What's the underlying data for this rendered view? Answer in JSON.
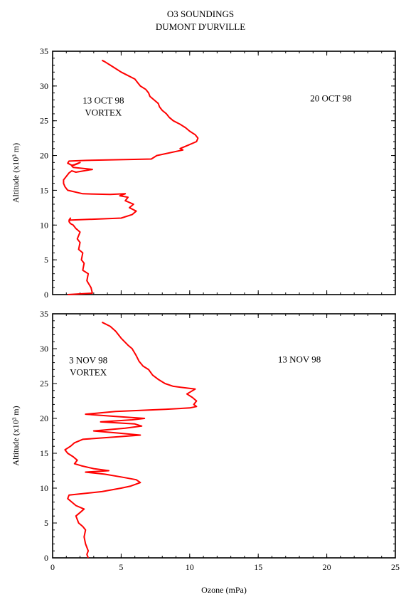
{
  "title": [
    "O3 SOUNDINGS",
    "DUMONT D'URVILLE"
  ],
  "xlabel": "Ozone (mPa)",
  "colors": {
    "profile": "#ff0000",
    "axes": "#000000"
  },
  "chart_data": [
    {
      "type": "line",
      "ylabel": "Altitude (x10³ m)",
      "xlim": [
        0,
        25
      ],
      "ylim": [
        0,
        35
      ],
      "xticks": [
        "0",
        "5",
        "10",
        "15",
        "20",
        "25"
      ],
      "yticks": [
        "0",
        "5",
        "10",
        "15",
        "20",
        "25",
        "30",
        "35"
      ],
      "annotations": [
        {
          "lines": [
            "13 OCT 98",
            "VORTEX"
          ],
          "x": 3.7,
          "y": 27.5
        },
        {
          "lines": [
            "20 OCT 98"
          ],
          "x": 20.3,
          "y": 27.8
        }
      ],
      "series": [
        {
          "x": [
            1.1,
            2.9,
            2.8,
            2.5,
            2.6,
            2.2,
            2.3,
            2.1,
            2.2,
            1.9,
            2.0,
            1.8,
            2.0,
            1.7,
            1.5,
            1.3,
            1.2,
            1.3,
            1.2,
            5.0,
            5.8,
            6.1,
            5.6,
            5.9,
            5.3,
            5.5,
            4.9,
            5.3,
            4.2,
            2.2,
            1.1,
            0.9,
            0.8,
            0.8,
            1.0,
            1.2,
            1.4,
            1.7,
            2.9,
            1.5,
            1.4,
            1.8,
            2.0,
            1.6,
            1.4,
            1.1,
            1.2,
            2.5,
            7.2,
            7.6,
            9.5,
            9.3,
            9.9,
            10.5,
            10.6,
            10.4,
            10.0,
            9.7,
            9.3,
            8.8,
            8.5,
            8.3,
            8.0,
            7.8,
            7.7,
            7.4,
            7.1,
            7.0,
            6.8,
            6.4,
            6.2,
            6.0,
            5.5,
            5.0,
            4.6,
            4.2,
            3.8,
            3.6
          ],
          "y": [
            0.0,
            0.2,
            1.0,
            2.0,
            3.0,
            3.5,
            4.5,
            5.0,
            6.0,
            6.5,
            7.5,
            8.0,
            9.0,
            9.5,
            10.0,
            10.2,
            10.5,
            11.0,
            10.7,
            11.0,
            11.5,
            12.0,
            12.5,
            13.0,
            13.5,
            14.0,
            14.2,
            14.5,
            14.4,
            14.5,
            15.0,
            15.5,
            16.0,
            16.5,
            17.0,
            17.5,
            17.8,
            17.6,
            18.0,
            18.3,
            18.5,
            18.8,
            19.0,
            18.7,
            18.6,
            18.9,
            19.2,
            19.3,
            19.5,
            20.0,
            20.8,
            21.0,
            21.5,
            22.0,
            22.5,
            23.0,
            23.5,
            24.0,
            24.5,
            25.0,
            25.5,
            26.0,
            26.5,
            27.0,
            27.5,
            28.0,
            28.5,
            29.0,
            29.5,
            30.0,
            30.5,
            31.0,
            31.5,
            32.0,
            32.5,
            33.0,
            33.5,
            33.7
          ]
        }
      ]
    },
    {
      "type": "line",
      "ylabel": "Altitude (x10³ m)",
      "xlim": [
        0,
        25
      ],
      "ylim": [
        0,
        35
      ],
      "xticks": [
        "0",
        "5",
        "10",
        "15",
        "20",
        "25"
      ],
      "yticks": [
        "0",
        "5",
        "10",
        "15",
        "20",
        "25",
        "30",
        "35"
      ],
      "annotations": [
        {
          "lines": [
            "3 NOV 98",
            "VORTEX"
          ],
          "x": 2.6,
          "y": 27.9
        },
        {
          "lines": [
            "13 NOV 98"
          ],
          "x": 18.0,
          "y": 28.0
        }
      ],
      "series": [
        {
          "x": [
            2.6,
            2.5,
            2.6,
            2.4,
            2.3,
            2.4,
            2.2,
            1.9,
            1.8,
            1.7,
            2.0,
            2.3,
            1.7,
            1.4,
            1.1,
            1.2,
            3.6,
            5.0,
            5.7,
            6.4,
            6.1,
            5.0,
            3.8,
            2.4,
            4.1,
            3.0,
            2.1,
            1.6,
            1.8,
            1.5,
            1.1,
            0.9,
            1.3,
            1.6,
            2.2,
            5.0,
            6.4,
            4.8,
            3.0,
            5.3,
            6.5,
            6.0,
            3.5,
            5.8,
            6.7,
            4.5,
            2.4,
            4.6,
            8.2,
            10.0,
            10.5,
            10.3,
            10.5,
            10.2,
            9.8,
            10.4,
            8.8,
            8.2,
            7.7,
            7.3,
            7.0,
            6.6,
            6.3,
            6.1,
            5.8,
            5.5,
            5.0,
            4.6,
            4.2,
            3.6
          ],
          "y": [
            0.0,
            0.5,
            1.0,
            2.0,
            3.0,
            4.0,
            4.5,
            5.0,
            5.5,
            6.0,
            6.5,
            7.0,
            7.5,
            8.0,
            8.5,
            9.0,
            9.5,
            10.0,
            10.3,
            10.8,
            11.2,
            11.6,
            12.0,
            12.3,
            12.5,
            12.8,
            13.2,
            13.5,
            14.0,
            14.5,
            15.0,
            15.5,
            16.0,
            16.5,
            17.0,
            17.4,
            17.6,
            17.9,
            18.2,
            18.6,
            18.9,
            19.2,
            19.5,
            19.8,
            20.0,
            20.3,
            20.6,
            21.0,
            21.3,
            21.5,
            21.7,
            22.0,
            22.5,
            23.0,
            23.5,
            24.2,
            24.6,
            25.0,
            25.6,
            26.2,
            27.0,
            27.5,
            28.2,
            29.0,
            30.0,
            30.5,
            31.5,
            32.5,
            33.2,
            33.8
          ]
        }
      ]
    }
  ]
}
